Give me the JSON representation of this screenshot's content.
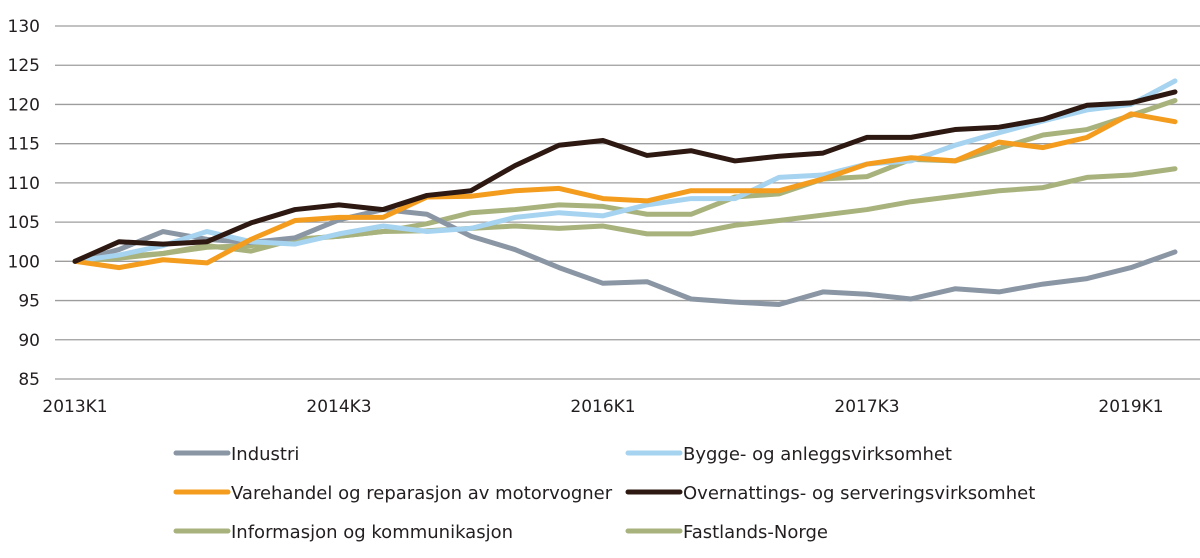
{
  "chart_data": {
    "type": "line",
    "title": "",
    "xlabel": "",
    "ylabel": "",
    "ylim": [
      85,
      130
    ],
    "yticks": [
      85,
      90,
      95,
      100,
      105,
      110,
      115,
      120,
      125,
      130
    ],
    "grid": true,
    "legend_position": "bottom",
    "x": [
      "2013K1",
      "2013K2",
      "2013K3",
      "2013K4",
      "2014K1",
      "2014K2",
      "2014K3",
      "2014K4",
      "2015K1",
      "2015K2",
      "2015K3",
      "2015K4",
      "2016K1",
      "2016K2",
      "2016K3",
      "2016K4",
      "2017K1",
      "2017K2",
      "2017K3",
      "2017K4",
      "2018K1",
      "2018K2",
      "2018K3",
      "2018K4",
      "2019K1",
      "2019K2"
    ],
    "xtick_labels": [
      "2013K1",
      "2014K3",
      "2016K1",
      "2017K3",
      "2019K1"
    ],
    "series": [
      {
        "name": "Industri",
        "color": "#8a96a4",
        "values": [
          100.0,
          101.5,
          103.8,
          102.8,
          102.4,
          103.0,
          105.3,
          106.6,
          106.0,
          103.2,
          101.5,
          99.2,
          97.2,
          97.4,
          95.2,
          94.8,
          94.5,
          96.1,
          95.8,
          95.2,
          96.5,
          96.1,
          97.1,
          97.8,
          99.2,
          101.2
        ]
      },
      {
        "name": "Bygge- og anleggsvirksomhet",
        "color": "#a6d3f0",
        "values": [
          100.0,
          100.8,
          102.0,
          103.8,
          102.5,
          102.2,
          103.5,
          104.5,
          103.8,
          104.2,
          105.6,
          106.2,
          105.8,
          107.2,
          108.0,
          108.0,
          110.7,
          111.0,
          112.4,
          112.8,
          114.8,
          116.4,
          117.9,
          119.3,
          120.0,
          123.0
        ]
      },
      {
        "name": "Varehandel og reparasjon av motorvogner",
        "color": "#f39c1e",
        "values": [
          100.0,
          99.2,
          100.2,
          99.8,
          102.8,
          105.2,
          105.6,
          105.6,
          108.2,
          108.3,
          109.0,
          109.3,
          108.0,
          107.7,
          109.0,
          109.0,
          109.0,
          110.5,
          112.4,
          113.2,
          112.8,
          115.2,
          114.5,
          115.8,
          118.8,
          117.8
        ]
      },
      {
        "name": "Overnattings- og serveringsvirksomhet",
        "color": "#2d1912",
        "values": [
          100.0,
          102.5,
          102.2,
          102.5,
          104.9,
          106.6,
          107.2,
          106.6,
          108.4,
          109.0,
          112.2,
          114.8,
          115.4,
          113.5,
          114.1,
          112.8,
          113.4,
          113.8,
          115.8,
          115.8,
          116.8,
          117.1,
          118.1,
          119.9,
          120.2,
          121.6
        ]
      },
      {
        "name": "Informasjon og kommunikasjon",
        "color": "#a8b27c",
        "values": [
          100.0,
          100.6,
          101.0,
          102.0,
          101.3,
          102.8,
          103.2,
          103.8,
          104.8,
          106.2,
          106.6,
          107.2,
          107.0,
          106.0,
          106.0,
          108.2,
          108.6,
          110.5,
          110.8,
          113.0,
          112.8,
          114.4,
          116.1,
          116.8,
          118.6,
          120.5
        ]
      },
      {
        "name": "Fastlands-Norge",
        "color": "#a8b27c",
        "values": [
          100.0,
          100.4,
          101.0,
          101.8,
          102.0,
          102.8,
          103.2,
          103.8,
          103.9,
          104.2,
          104.5,
          104.2,
          104.5,
          103.5,
          103.5,
          104.6,
          105.2,
          105.9,
          106.6,
          107.6,
          108.3,
          109.0,
          109.4,
          110.7,
          111.0,
          111.8
        ]
      }
    ]
  }
}
